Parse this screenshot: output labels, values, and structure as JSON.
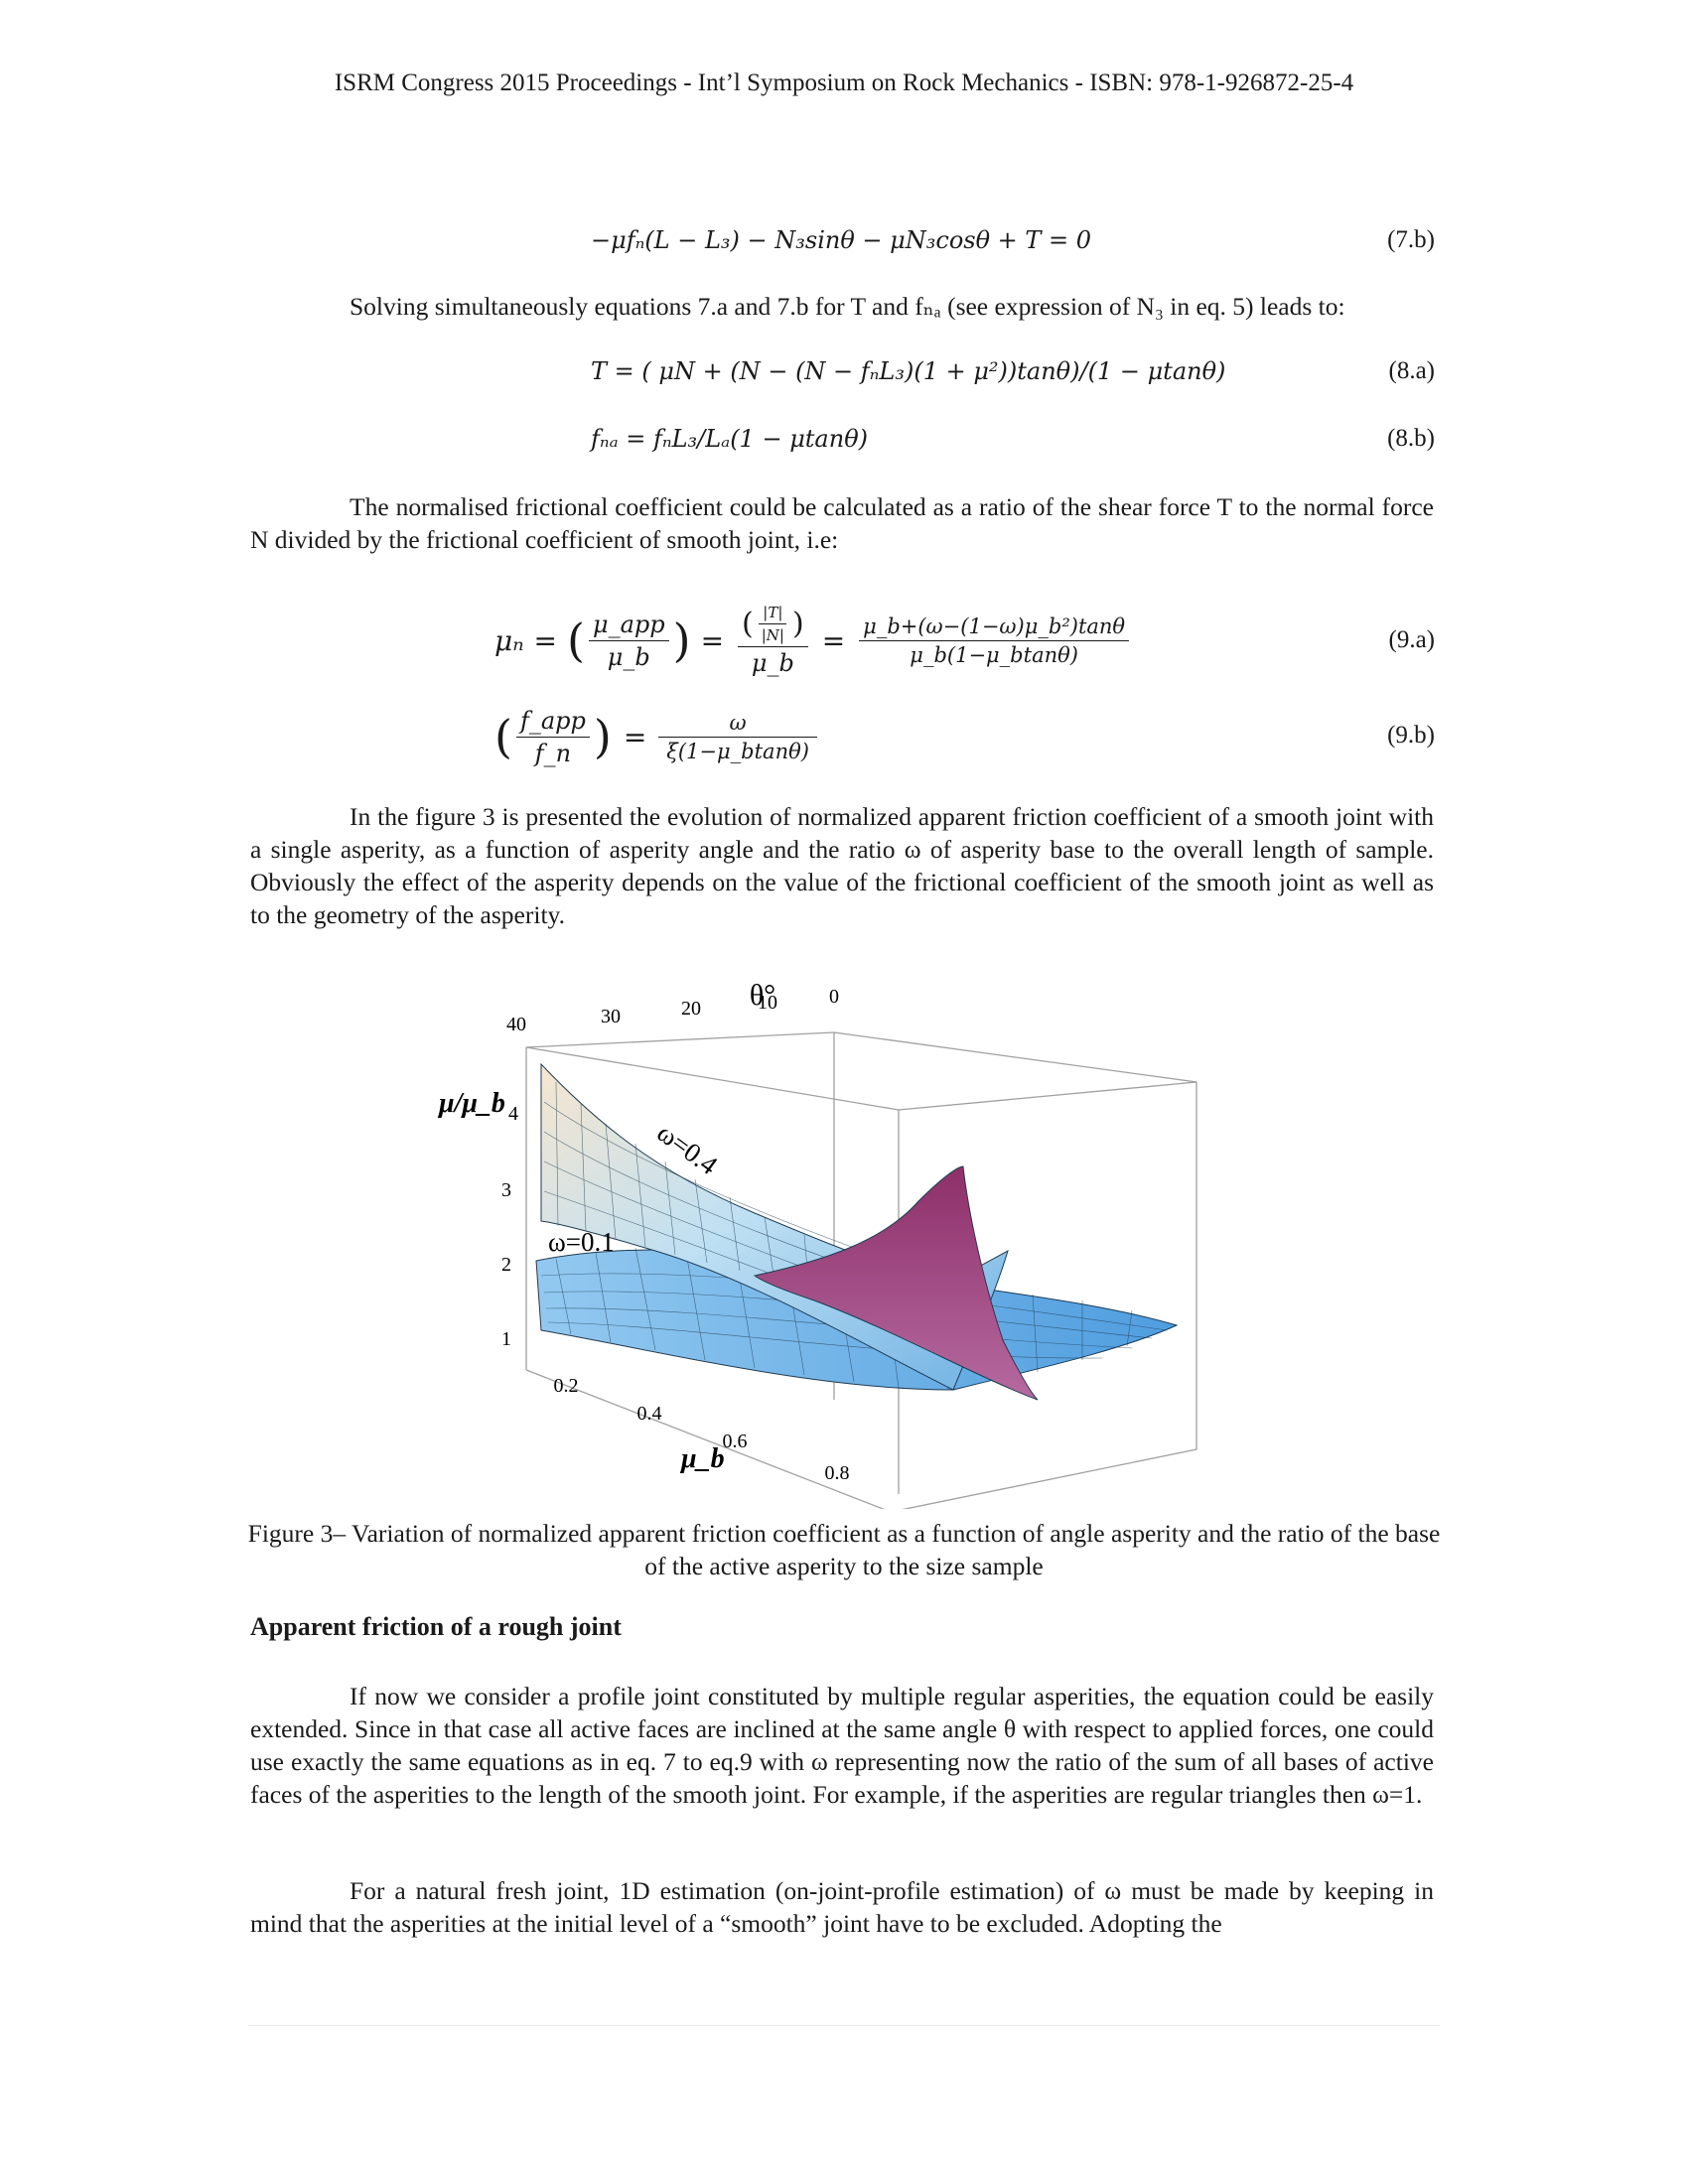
{
  "header": "ISRM Congress 2015 Proceedings - Int’l Symposium on Rock Mechanics - ISBN: 978-1-926872-25-4",
  "equations": {
    "eq7b": {
      "body": "−μfₙ(L − L₃) − N₃sinθ − μN₃cosθ + T = 0",
      "number": "(7.b)"
    },
    "eq8a": {
      "body": "T = ( μN + (N −  (N − fₙL₃)(1 + μ²))tanθ)/(1 − μtanθ)",
      "number": "(8.a)"
    },
    "eq8b": {
      "body": "fₙₐ = fₙL₃/Lₐ(1 − μtanθ)",
      "number": "(8.b)"
    },
    "eq9a": {
      "lhs": "μₙ",
      "frac1_num": "μ_app",
      "frac1_den": "μ_b",
      "frac2_num_top": "|T|",
      "frac2_num_bot": "|N|",
      "frac2_den": "μ_b",
      "frac3_num": "μ_b+(ω−(1−ω)μ_b²)tanθ",
      "frac3_den": "μ_b(1−μ_btanθ)",
      "number": "(9.a)"
    },
    "eq9b": {
      "lhs_num": "f_app",
      "lhs_den": "f_n",
      "rhs_num": "ω",
      "rhs_den": "ξ(1−μ_btanθ)",
      "number": "(9.b)"
    }
  },
  "paragraphs": {
    "p_solving": "Solving simultaneously equations 7.a and 7.b for T and fₙₐ (see expression of N₃ in eq. 5) leads to:",
    "p_normalised": "The normalised frictional coefficient could be calculated as a ratio of the shear force T to the normal force N divided by the frictional coefficient of smooth joint, i.e:",
    "p_figure3": "In the figure 3 is presented the evolution of normalized apparent friction coefficient of a smooth joint with a single asperity, as a function of asperity angle and the ratio ω of asperity base to the overall length of sample. Obviously the effect of the asperity depends on the value of the frictional coefficient of the smooth joint as well as to the geometry of the asperity.",
    "p_rough": "If now we consider a profile joint constituted by multiple regular asperities, the equation could be easily extended. Since in that case all active faces are inclined at the same angle θ with respect to applied forces, one could use exactly the same equations as in eq. 7 to eq.9 with ω representing now the ratio of the sum of all bases of active faces of the asperities to the length of the smooth joint. For example, if the asperities are regular triangles then ω=1.",
    "p_natural": "For a natural fresh joint, 1D estimation (on-joint-profile estimation) of ω must be made by keeping in mind that the asperities at the initial level of a “smooth” joint have to be excluded. Adopting the"
  },
  "figure": {
    "theta_label": "θ°",
    "theta_ticks": [
      "40",
      "30",
      "20",
      "10",
      "0"
    ],
    "z_label": "μ/μ_b",
    "z_ticks": [
      "4",
      "3",
      "2",
      "1"
    ],
    "mu_label": "μ_b",
    "mu_ticks": [
      "0.2",
      "0.4",
      "0.6",
      "0.8"
    ],
    "label_omega04": "ω=0.4",
    "label_omega01": "ω=0.1",
    "colors": {
      "upper_surface": "#a9d4f0",
      "lower_surface": "#6cb4ec",
      "peak": "#8a3a70",
      "mesh": "#1f3b52"
    }
  },
  "caption": "Figure 3– Variation of normalized apparent friction coefficient as a function of angle asperity and the ratio of the base of the active asperity to the size sample",
  "section_title": "Apparent friction of a rough joint"
}
